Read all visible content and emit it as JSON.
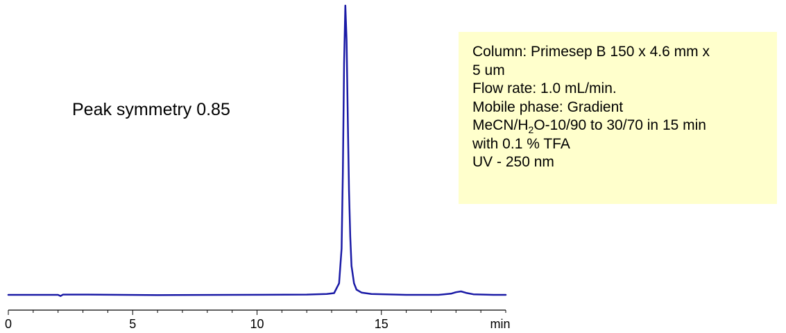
{
  "chart_data": {
    "type": "line",
    "xlabel": "min",
    "xlim": [
      0,
      20
    ],
    "ylim": [
      0,
      100
    ],
    "x_ticks": [
      0,
      5,
      10,
      15
    ],
    "x_tick_labels": [
      "0",
      "5",
      "10",
      "15"
    ],
    "grid": false,
    "series": [
      {
        "color": "#1a1aa6",
        "x": [
          0,
          2.0,
          2.1,
          2.2,
          3,
          6,
          9,
          12,
          12.8,
          13.1,
          13.3,
          13.4,
          13.45,
          13.5,
          13.55,
          13.6,
          13.65,
          13.7,
          13.75,
          13.8,
          13.9,
          14.0,
          14.2,
          14.6,
          16,
          17.3,
          17.8,
          18.0,
          18.2,
          18.4,
          18.7,
          19.5,
          20
        ],
        "values": [
          0,
          0,
          -0.4,
          0.1,
          0.1,
          -0.1,
          0,
          0.1,
          0.3,
          0.6,
          4,
          16,
          42,
          80,
          100,
          88,
          60,
          36,
          20,
          10,
          4,
          1.8,
          0.8,
          0.3,
          0,
          0,
          0.4,
          0.9,
          1.2,
          0.7,
          0.2,
          0,
          0
        ]
      }
    ],
    "annotations": [
      "Peak symmetry 0.85"
    ]
  },
  "conditions": {
    "line1": "Column: Primesep B 150 x 4.6 mm x",
    "line2": "5 um",
    "line3": "Flow rate: 1.0 mL/min.",
    "line4": "Mobile phase: Gradient",
    "line5_pre": "MeCN/H",
    "line5_sub": "2",
    "line5_post": "O-10/90 to 30/70 in 15 min",
    "line6": "with 0.1 % TFA",
    "line7": "UV - 250 nm"
  }
}
